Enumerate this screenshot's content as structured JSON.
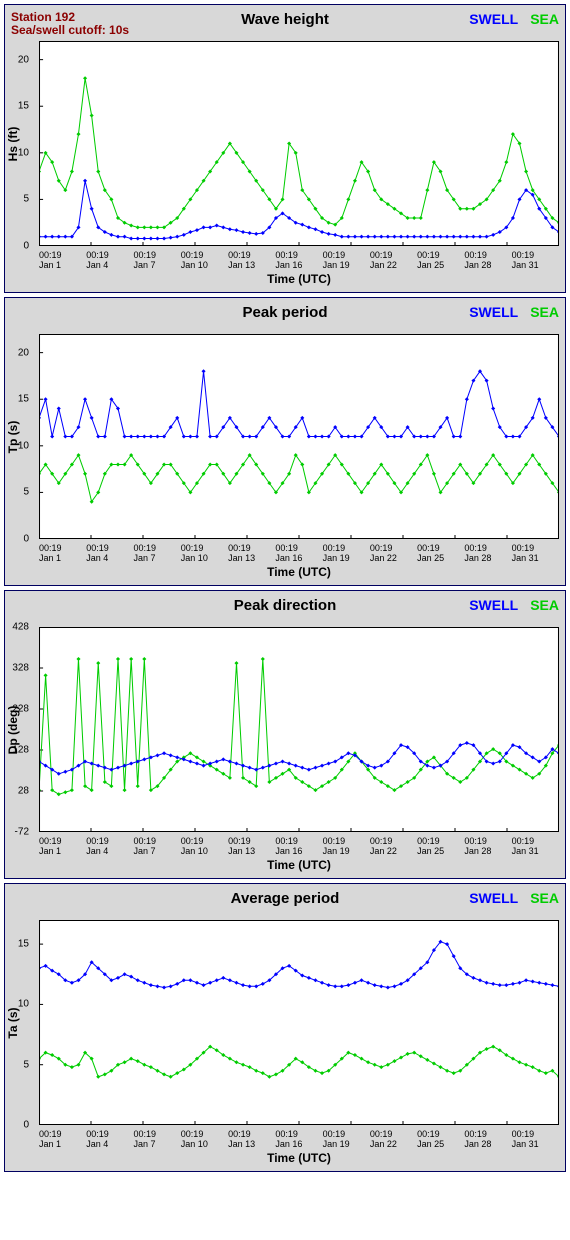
{
  "station_line1": "Station 192",
  "station_line2": "Sea/swell cutoff: 10s",
  "legend_swell": "SWELL",
  "legend_sea": "SEA",
  "xaxis_title": "Time (UTC)",
  "xlabels": [
    {
      "t": "00:19",
      "d": "Jan 1"
    },
    {
      "t": "00:19",
      "d": "Jan 4"
    },
    {
      "t": "00:19",
      "d": "Jan 7"
    },
    {
      "t": "00:19",
      "d": "Jan 10"
    },
    {
      "t": "00:19",
      "d": "Jan 13"
    },
    {
      "t": "00:19",
      "d": "Jan 16"
    },
    {
      "t": "00:19",
      "d": "Jan 19"
    },
    {
      "t": "00:19",
      "d": "Jan 22"
    },
    {
      "t": "00:19",
      "d": "Jan 25"
    },
    {
      "t": "00:19",
      "d": "Jan 28"
    },
    {
      "t": "00:19",
      "d": "Jan 31"
    }
  ],
  "colors": {
    "swell": "#0000ff",
    "sea": "#00cc00",
    "panel_bg": "#d8d8d8",
    "plot_bg": "#ffffff",
    "border": "#000060",
    "station": "#8b0000"
  },
  "line_width": 1,
  "marker_size": 2,
  "panels": [
    {
      "title": "Wave height",
      "ylabel": "Hs (ft)",
      "ylim": [
        0,
        22
      ],
      "yticks": [
        0,
        5,
        10,
        15,
        20
      ],
      "sea": [
        8,
        10,
        9,
        7,
        6,
        8,
        12,
        18,
        14,
        8,
        6,
        5,
        3,
        2.5,
        2.2,
        2,
        2,
        2,
        2,
        2,
        2.5,
        3,
        4,
        5,
        6,
        7,
        8,
        9,
        10,
        11,
        10,
        9,
        8,
        7,
        6,
        5,
        4,
        5,
        11,
        10,
        6,
        5,
        4,
        3,
        2.5,
        2.3,
        3,
        5,
        7,
        9,
        8,
        6,
        5,
        4.5,
        4,
        3.5,
        3,
        3,
        3,
        6,
        9,
        8,
        6,
        5,
        4,
        4,
        4,
        4.5,
        5,
        6,
        7,
        9,
        12,
        11,
        8,
        6,
        5,
        4,
        3,
        2.5
      ],
      "swell": [
        1,
        1,
        1,
        1,
        1,
        1,
        2,
        7,
        4,
        2,
        1.5,
        1.2,
        1,
        1,
        0.8,
        0.8,
        0.8,
        0.8,
        0.8,
        0.8,
        0.9,
        1,
        1.2,
        1.5,
        1.7,
        2,
        2,
        2.2,
        2,
        1.8,
        1.7,
        1.5,
        1.4,
        1.3,
        1.4,
        2,
        3,
        3.5,
        3,
        2.5,
        2.3,
        2,
        1.8,
        1.5,
        1.3,
        1.2,
        1,
        1,
        1,
        1,
        1,
        1,
        1,
        1,
        1,
        1,
        1,
        1,
        1,
        1,
        1,
        1,
        1,
        1,
        1,
        1,
        1,
        1,
        1,
        1.2,
        1.5,
        2,
        3,
        5,
        6,
        5.5,
        4,
        3,
        2,
        1.5
      ]
    },
    {
      "title": "Peak period",
      "ylabel": "Tp (s)",
      "ylim": [
        0,
        22
      ],
      "yticks": [
        0,
        5,
        10,
        15,
        20
      ],
      "sea": [
        7,
        8,
        7,
        6,
        7,
        8,
        9,
        7,
        4,
        5,
        7,
        8,
        8,
        8,
        9,
        8,
        7,
        6,
        7,
        8,
        8,
        7,
        6,
        5,
        6,
        7,
        8,
        8,
        7,
        6,
        7,
        8,
        9,
        8,
        7,
        6,
        5,
        6,
        7,
        9,
        8,
        5,
        6,
        7,
        8,
        9,
        8,
        7,
        6,
        5,
        6,
        7,
        8,
        7,
        6,
        5,
        6,
        7,
        8,
        9,
        7,
        5,
        6,
        7,
        8,
        7,
        6,
        7,
        8,
        9,
        8,
        7,
        6,
        7,
        8,
        9,
        8,
        7,
        6,
        5
      ],
      "swell": [
        13,
        15,
        11,
        14,
        11,
        11,
        12,
        15,
        13,
        11,
        11,
        15,
        14,
        11,
        11,
        11,
        11,
        11,
        11,
        11,
        12,
        13,
        11,
        11,
        11,
        18,
        11,
        11,
        12,
        13,
        12,
        11,
        11,
        11,
        12,
        13,
        12,
        11,
        11,
        12,
        13,
        11,
        11,
        11,
        11,
        12,
        11,
        11,
        11,
        11,
        12,
        13,
        12,
        11,
        11,
        11,
        12,
        11,
        11,
        11,
        11,
        12,
        13,
        11,
        11,
        15,
        17,
        18,
        17,
        14,
        12,
        11,
        11,
        11,
        12,
        13,
        15,
        13,
        12,
        11
      ]
    },
    {
      "title": "Peak direction",
      "ylabel": "Dp (deg)",
      "ylim": [
        -72,
        428
      ],
      "yticks": [
        -72,
        28,
        128,
        228,
        328,
        428
      ],
      "sea": [
        30,
        310,
        30,
        20,
        25,
        30,
        350,
        40,
        30,
        340,
        50,
        40,
        350,
        30,
        350,
        40,
        350,
        30,
        40,
        60,
        80,
        100,
        110,
        120,
        110,
        100,
        90,
        80,
        70,
        60,
        340,
        60,
        50,
        40,
        350,
        50,
        60,
        70,
        80,
        60,
        50,
        40,
        30,
        40,
        50,
        60,
        80,
        100,
        120,
        100,
        80,
        60,
        50,
        40,
        30,
        40,
        50,
        60,
        80,
        100,
        110,
        90,
        70,
        60,
        50,
        60,
        80,
        100,
        120,
        130,
        120,
        100,
        90,
        80,
        70,
        60,
        70,
        90,
        120,
        140
      ],
      "swell": [
        100,
        90,
        80,
        70,
        75,
        80,
        90,
        100,
        95,
        90,
        85,
        80,
        85,
        90,
        95,
        100,
        105,
        110,
        115,
        120,
        115,
        110,
        105,
        100,
        95,
        90,
        95,
        100,
        105,
        100,
        95,
        90,
        85,
        80,
        85,
        90,
        95,
        100,
        95,
        90,
        85,
        80,
        85,
        90,
        95,
        100,
        110,
        120,
        115,
        100,
        90,
        85,
        90,
        100,
        120,
        140,
        135,
        120,
        100,
        90,
        85,
        90,
        100,
        120,
        140,
        145,
        140,
        120,
        100,
        95,
        100,
        120,
        140,
        135,
        120,
        110,
        100,
        110,
        130,
        120
      ]
    },
    {
      "title": "Average period",
      "ylabel": "Ta (s)",
      "ylim": [
        0,
        17
      ],
      "yticks": [
        0,
        5,
        10,
        15
      ],
      "sea": [
        5.5,
        6,
        5.8,
        5.5,
        5,
        4.8,
        5,
        6,
        5.5,
        4,
        4.2,
        4.5,
        5,
        5.2,
        5.5,
        5.3,
        5,
        4.8,
        4.5,
        4.2,
        4,
        4.3,
        4.6,
        5,
        5.5,
        6,
        6.5,
        6.2,
        5.8,
        5.5,
        5.2,
        5,
        4.8,
        4.5,
        4.3,
        4,
        4.2,
        4.5,
        5,
        5.5,
        5.2,
        4.8,
        4.5,
        4.3,
        4.5,
        5,
        5.5,
        6,
        5.8,
        5.5,
        5.2,
        5,
        4.8,
        5,
        5.3,
        5.6,
        5.9,
        6,
        5.7,
        5.4,
        5.1,
        4.8,
        4.5,
        4.3,
        4.5,
        5,
        5.5,
        6,
        6.3,
        6.5,
        6.2,
        5.8,
        5.5,
        5.2,
        5,
        4.8,
        4.5,
        4.3,
        4.5,
        4
      ],
      "swell": [
        13,
        13.2,
        12.8,
        12.5,
        12,
        11.8,
        12,
        12.5,
        13.5,
        13,
        12.5,
        12,
        12.2,
        12.5,
        12.3,
        12,
        11.8,
        11.6,
        11.5,
        11.4,
        11.5,
        11.7,
        12,
        12,
        11.8,
        11.6,
        11.8,
        12,
        12.2,
        12,
        11.8,
        11.6,
        11.5,
        11.5,
        11.7,
        12,
        12.5,
        13,
        13.2,
        12.8,
        12.4,
        12.2,
        12,
        11.8,
        11.6,
        11.5,
        11.5,
        11.6,
        11.8,
        12,
        11.8,
        11.6,
        11.5,
        11.4,
        11.5,
        11.7,
        12,
        12.5,
        13,
        13.5,
        14.5,
        15.2,
        15,
        14,
        13,
        12.5,
        12.2,
        12,
        11.8,
        11.7,
        11.6,
        11.6,
        11.7,
        11.8,
        12,
        11.9,
        11.8,
        11.7,
        11.6,
        11.5
      ]
    }
  ]
}
